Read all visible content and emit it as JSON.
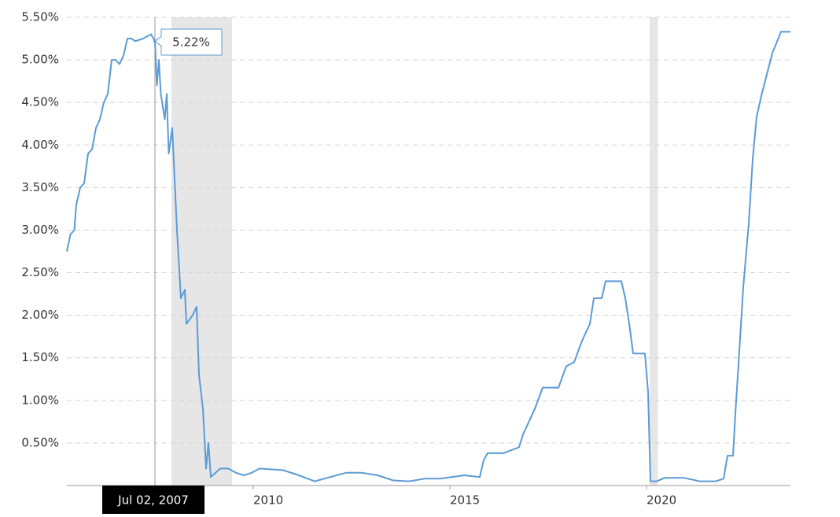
{
  "chart_data": {
    "type": "line",
    "color": "#5b9bd5",
    "x": [
      2005.26,
      2005.35,
      2005.45,
      2005.5,
      2005.6,
      2005.7,
      2005.8,
      2005.9,
      2006.0,
      2006.1,
      2006.2,
      2006.3,
      2006.4,
      2006.5,
      2006.6,
      2006.7,
      2006.8,
      2006.9,
      2007.0,
      2007.2,
      2007.4,
      2007.5,
      2007.55,
      2007.6,
      2007.65,
      2007.75,
      2007.8,
      2007.85,
      2007.94,
      2008.06,
      2008.16,
      2008.26,
      2008.3,
      2008.46,
      2008.56,
      2008.62,
      2008.72,
      2008.8,
      2008.86,
      2008.92,
      2009.16,
      2009.36,
      2009.56,
      2009.76,
      2009.96,
      2010.16,
      2010.76,
      2011.16,
      2011.56,
      2011.96,
      2012.36,
      2012.76,
      2013.16,
      2013.56,
      2013.96,
      2014.36,
      2014.76,
      2015.36,
      2015.76,
      2015.86,
      2015.96,
      2016.36,
      2016.76,
      2016.86,
      2017.16,
      2017.36,
      2017.76,
      2017.96,
      2018.16,
      2018.36,
      2018.56,
      2018.66,
      2018.86,
      2018.96,
      2019.36,
      2019.46,
      2019.56,
      2019.66,
      2019.96,
      2020.04,
      2020.1,
      2020.26,
      2020.46,
      2020.96,
      2021.36,
      2021.76,
      2021.96,
      2022.06,
      2022.2,
      2022.26,
      2022.36,
      2022.46,
      2022.6,
      2022.7,
      2022.8,
      2022.92,
      2023.06,
      2023.2,
      2023.42,
      2023.66
    ],
    "values": [
      2.75,
      2.95,
      3.0,
      3.3,
      3.5,
      3.55,
      3.9,
      3.95,
      4.2,
      4.3,
      4.5,
      4.6,
      5.0,
      5.0,
      4.95,
      5.05,
      5.25,
      5.25,
      5.22,
      5.25,
      5.3,
      5.22,
      4.7,
      5.0,
      4.6,
      4.3,
      4.6,
      3.9,
      4.2,
      3.0,
      2.2,
      2.3,
      1.9,
      2.0,
      2.1,
      1.3,
      0.9,
      0.2,
      0.5,
      0.1,
      0.2,
      0.2,
      0.15,
      0.12,
      0.15,
      0.2,
      0.18,
      0.12,
      0.05,
      0.1,
      0.15,
      0.15,
      0.12,
      0.06,
      0.05,
      0.08,
      0.08,
      0.12,
      0.1,
      0.3,
      0.38,
      0.38,
      0.45,
      0.6,
      0.9,
      1.15,
      1.15,
      1.4,
      1.45,
      1.7,
      1.9,
      2.2,
      2.2,
      2.4,
      2.4,
      2.2,
      1.9,
      1.55,
      1.55,
      1.1,
      0.05,
      0.05,
      0.09,
      0.09,
      0.05,
      0.05,
      0.08,
      0.35,
      0.35,
      0.85,
      1.58,
      2.33,
      3.08,
      3.83,
      4.33,
      4.58,
      4.83,
      5.08,
      5.33,
      5.33
    ],
    "xlim": [
      2005.26,
      2023.66
    ],
    "xticks": [
      2010,
      2015,
      2020
    ],
    "ylim": [
      0,
      5.5
    ],
    "yticks": [
      {
        "value": 0.5,
        "label": "0.50%"
      },
      {
        "value": 1.0,
        "label": "1.00%"
      },
      {
        "value": 1.5,
        "label": "1.50%"
      },
      {
        "value": 2.0,
        "label": "2.00%"
      },
      {
        "value": 2.5,
        "label": "2.50%"
      },
      {
        "value": 3.0,
        "label": "3.00%"
      },
      {
        "value": 3.5,
        "label": "3.50%"
      },
      {
        "value": 4.0,
        "label": "4.00%"
      },
      {
        "value": 4.5,
        "label": "4.50%"
      },
      {
        "value": 5.0,
        "label": "5.00%"
      },
      {
        "value": 5.5,
        "label": "5.50%"
      }
    ],
    "grid": true,
    "shaded_regions": [
      [
        2007.92,
        2009.46
      ],
      [
        2020.08,
        2020.29
      ]
    ],
    "shade_color": "#e6e6e6",
    "tooltip": {
      "x": 2007.5,
      "x_label": "Jul 02, 2007",
      "value": 5.22,
      "value_label": "5.22%"
    }
  }
}
